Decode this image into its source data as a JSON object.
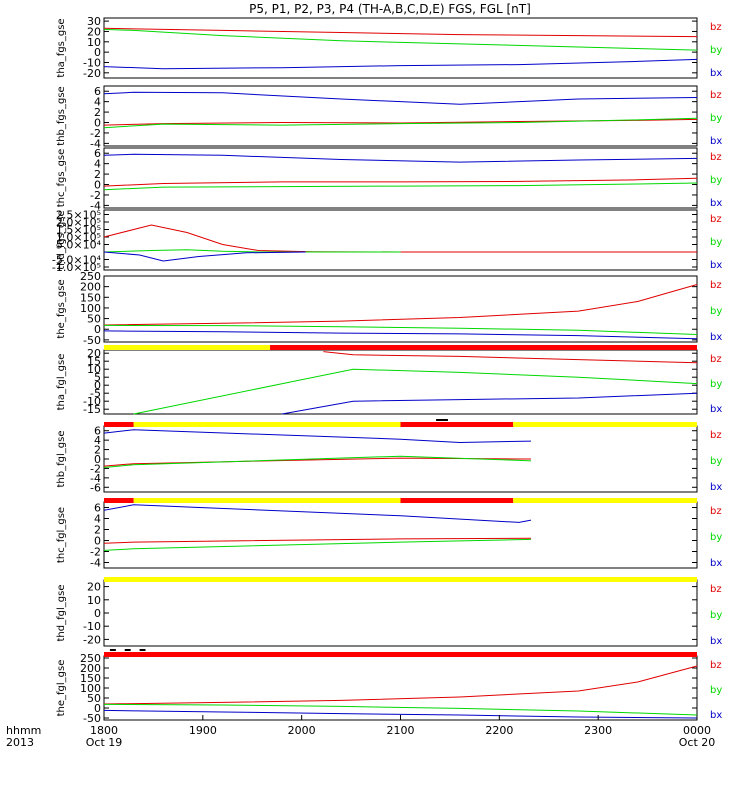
{
  "title": "P5, P1, P2, P3, P4 (TH-A,B,C,D,E) FGS, FGL [nT]",
  "x_axis": {
    "ticks": [
      "1800",
      "1900",
      "2000",
      "2100",
      "2200",
      "2300",
      "0000"
    ],
    "sublabels": {
      "start": "Oct 19",
      "end": "Oct 20"
    },
    "corner_labels": [
      "hhmm",
      "2013"
    ]
  },
  "colors": {
    "bz": "#e00000",
    "by": "#00d800",
    "bx": "#0000c8",
    "flag_red": "#ff0000",
    "flag_yellow": "#ffff00",
    "flag_black": "#000000"
  },
  "chart_data": [
    {
      "type": "line",
      "ylabel": "tha_fgs_gse",
      "ylim": [
        -25,
        33
      ],
      "yticks": [
        "-20",
        "-10",
        "0",
        "10",
        "20",
        "30"
      ],
      "series": [
        {
          "name": "bz",
          "x": [
            0,
            0.2,
            0.4,
            0.6,
            0.8,
            1
          ],
          "y": [
            23,
            21,
            19,
            17,
            16,
            15
          ]
        },
        {
          "name": "by",
          "x": [
            0,
            0.05,
            0.2,
            0.4,
            0.6,
            0.8,
            1
          ],
          "y": [
            22,
            21,
            16,
            11,
            8,
            5,
            2
          ]
        },
        {
          "name": "bx",
          "x": [
            0,
            0.1,
            0.3,
            0.5,
            0.7,
            0.9,
            1
          ],
          "y": [
            -14,
            -16,
            -15,
            -13,
            -12,
            -9,
            -7
          ]
        }
      ]
    },
    {
      "type": "line",
      "ylabel": "thb_fgs_gse",
      "ylim": [
        -4.5,
        7
      ],
      "yticks": [
        "-4",
        "-2",
        "0",
        "2",
        "4",
        "6"
      ],
      "series": [
        {
          "name": "bz",
          "x": [
            0,
            0.1,
            0.3,
            0.5,
            0.7,
            0.9,
            1
          ],
          "y": [
            -0.5,
            -0.2,
            0,
            -0.1,
            0.2,
            0.4,
            0.6
          ]
        },
        {
          "name": "by",
          "x": [
            0,
            0.1,
            0.3,
            0.5,
            0.7,
            0.9,
            1
          ],
          "y": [
            -1.0,
            -0.3,
            -0.5,
            -0.2,
            0,
            0.5,
            0.8
          ]
        },
        {
          "name": "bx",
          "x": [
            0,
            0.05,
            0.2,
            0.4,
            0.6,
            0.8,
            1
          ],
          "y": [
            5.5,
            5.8,
            5.7,
            4.5,
            3.5,
            4.5,
            4.8
          ]
        }
      ]
    },
    {
      "type": "line",
      "ylabel": "thc_fgs_gse",
      "ylim": [
        -4.5,
        7
      ],
      "yticks": [
        "-4",
        "-2",
        "0",
        "2",
        "4",
        "6"
      ],
      "series": [
        {
          "name": "bz",
          "x": [
            0,
            0.1,
            0.3,
            0.5,
            0.7,
            0.9,
            1
          ],
          "y": [
            -0.3,
            0.2,
            0.5,
            0.5,
            0.6,
            0.9,
            1.2
          ]
        },
        {
          "name": "by",
          "x": [
            0,
            0.1,
            0.3,
            0.5,
            0.7,
            0.9,
            1
          ],
          "y": [
            -1.0,
            -0.5,
            -0.4,
            -0.3,
            -0.2,
            0.1,
            0.3
          ]
        },
        {
          "name": "bx",
          "x": [
            0,
            0.05,
            0.2,
            0.4,
            0.6,
            0.8,
            1
          ],
          "y": [
            5.6,
            5.8,
            5.6,
            4.8,
            4.3,
            4.7,
            5.0
          ]
        }
      ]
    },
    {
      "type": "line",
      "ylabel": "thd_fgs_gse",
      "ylim": [
        -120000.0,
        280000.0
      ],
      "yticks": [
        "-1.0×10⁵",
        "-5.0×10⁴",
        "5.0×10⁴",
        "1.0×10⁵",
        "1.5×10⁵",
        "2.0×10⁵",
        "2.5×10⁵"
      ],
      "series": [
        {
          "name": "bz",
          "x": [
            0,
            0.08,
            0.14,
            0.2,
            0.26,
            0.35,
            0.5,
            1
          ],
          "y": [
            100000.0,
            180000.0,
            130000.0,
            50000.0,
            10000.0,
            2000.0,
            0,
            0
          ]
        },
        {
          "name": "by",
          "x": [
            0,
            0.08,
            0.14,
            0.2,
            0.26,
            0.35,
            0.5
          ],
          "y": [
            0,
            10000.0,
            15000.0,
            5000.0,
            0,
            0,
            0
          ]
        },
        {
          "name": "bx",
          "x": [
            0,
            0.06,
            0.1,
            0.16,
            0.24,
            0.34
          ],
          "y": [
            0,
            -20000.0,
            -60000.0,
            -30000.0,
            -5000.0,
            0
          ]
        }
      ]
    },
    {
      "type": "line",
      "ylabel": "the_fgs_gse",
      "ylim": [
        -60,
        250
      ],
      "yticks": [
        "-50",
        "0",
        "50",
        "100",
        "150",
        "200",
        "250"
      ],
      "series": [
        {
          "name": "bz",
          "x": [
            0,
            0.2,
            0.4,
            0.6,
            0.8,
            0.9,
            1
          ],
          "y": [
            20,
            28,
            38,
            55,
            85,
            130,
            210
          ]
        },
        {
          "name": "by",
          "x": [
            0,
            0.2,
            0.4,
            0.6,
            0.8,
            1
          ],
          "y": [
            18,
            17,
            12,
            5,
            -5,
            -25
          ]
        },
        {
          "name": "bx",
          "x": [
            0,
            0.2,
            0.4,
            0.6,
            0.8,
            1
          ],
          "y": [
            -8,
            -12,
            -18,
            -22,
            -30,
            -45
          ]
        }
      ]
    },
    {
      "type": "line",
      "ylabel": "tha_fgl_gse",
      "ylim": [
        -18,
        22
      ],
      "yticks": [
        "-15",
        "-10",
        "-5",
        "0",
        "5",
        "10",
        "15",
        "20"
      ],
      "series": [
        {
          "name": "bz",
          "x": [
            0.37,
            0.42,
            0.6,
            0.8,
            1
          ],
          "y": [
            21,
            19,
            18,
            16,
            14
          ]
        },
        {
          "name": "by",
          "x": [
            0.05,
            0.42,
            0.6,
            0.8,
            1
          ],
          "y": [
            -18,
            10,
            8,
            5,
            1
          ]
        },
        {
          "name": "bx",
          "x": [
            0.3,
            0.42,
            0.6,
            0.8,
            1
          ],
          "y": [
            -18,
            -10,
            -9,
            -8,
            -5
          ]
        }
      ]
    },
    {
      "type": "line",
      "ylabel": "thb_fgl_gse",
      "ylim": [
        -7,
        7
      ],
      "yticks": [
        "-6",
        "-4",
        "-2",
        "0",
        "2",
        "4",
        "6"
      ],
      "series": [
        {
          "name": "bz",
          "x": [
            0,
            0.05,
            0.5,
            0.7,
            0.72
          ],
          "y": [
            -1.5,
            -1.0,
            0.2,
            0,
            0
          ]
        },
        {
          "name": "by",
          "x": [
            0,
            0.05,
            0.5,
            0.7,
            0.72
          ],
          "y": [
            -1.8,
            -1.2,
            0.6,
            -0.3,
            -0.4
          ]
        },
        {
          "name": "bx",
          "x": [
            0,
            0.05,
            0.5,
            0.6,
            0.72
          ],
          "y": [
            5.5,
            6.2,
            4.2,
            3.5,
            3.8
          ]
        }
      ]
    },
    {
      "type": "line",
      "ylabel": "thc_fgl_gse",
      "ylim": [
        -5,
        7
      ],
      "yticks": [
        "-4",
        "-2",
        "0",
        "2",
        "4",
        "6"
      ],
      "series": [
        {
          "name": "bz",
          "x": [
            0,
            0.05,
            0.5,
            0.72
          ],
          "y": [
            -0.5,
            -0.3,
            0.3,
            0.4
          ]
        },
        {
          "name": "by",
          "x": [
            0,
            0.05,
            0.5,
            0.72
          ],
          "y": [
            -1.8,
            -1.5,
            -0.3,
            0.2
          ]
        },
        {
          "name": "bx",
          "x": [
            0,
            0.05,
            0.5,
            0.7,
            0.72
          ],
          "y": [
            5.5,
            6.5,
            4.5,
            3.3,
            3.7
          ]
        }
      ]
    },
    {
      "type": "line",
      "ylabel": "thd_fgl_gse",
      "ylim": [
        -25,
        25
      ],
      "yticks": [
        "-20",
        "-10",
        "0",
        "10",
        "20"
      ],
      "series": []
    },
    {
      "type": "line",
      "ylabel": "the_fgl_gse",
      "ylim": [
        -60,
        260
      ],
      "yticks": [
        "-50",
        "0",
        "50",
        "100",
        "150",
        "200",
        "250"
      ],
      "series": [
        {
          "name": "bz",
          "x": [
            0,
            0.2,
            0.4,
            0.6,
            0.8,
            0.9,
            1
          ],
          "y": [
            20,
            28,
            38,
            55,
            85,
            130,
            210
          ]
        },
        {
          "name": "by",
          "x": [
            0,
            0.2,
            0.4,
            0.6,
            0.8,
            1
          ],
          "y": [
            18,
            15,
            8,
            -2,
            -15,
            -35
          ]
        },
        {
          "name": "bx",
          "x": [
            0,
            0.2,
            0.4,
            0.6,
            0.8,
            1
          ],
          "y": [
            -12,
            -20,
            -28,
            -35,
            -45,
            -50
          ]
        }
      ]
    }
  ],
  "flag_bars": [
    {
      "after_panel": 4,
      "segments": [
        {
          "x0": 0,
          "x1": 0.28,
          "color": "yellow"
        },
        {
          "x0": 0.28,
          "x1": 1,
          "color": "red"
        }
      ]
    },
    {
      "after_panel": 5,
      "segments": [
        {
          "x0": 0,
          "x1": 0.05,
          "color": "red"
        },
        {
          "x0": 0.05,
          "x1": 0.5,
          "color": "yellow"
        },
        {
          "x0": 0.5,
          "x1": 0.69,
          "color": "red"
        },
        {
          "x0": 0.69,
          "x1": 1,
          "color": "yellow"
        }
      ],
      "marks": [
        {
          "x0": 0.56,
          "x1": 0.58
        }
      ]
    },
    {
      "after_panel": 6,
      "segments": [
        {
          "x0": 0,
          "x1": 0.05,
          "color": "red"
        },
        {
          "x0": 0.05,
          "x1": 0.5,
          "color": "yellow"
        },
        {
          "x0": 0.5,
          "x1": 0.69,
          "color": "red"
        },
        {
          "x0": 0.69,
          "x1": 1,
          "color": "yellow"
        }
      ]
    },
    {
      "after_panel": 7,
      "segments": [
        {
          "x0": 0,
          "x1": 1,
          "color": "yellow"
        }
      ]
    },
    {
      "after_panel": 8,
      "segments": [
        {
          "x0": 0,
          "x1": 1,
          "color": "red"
        }
      ],
      "marks": [
        {
          "x0": 0.01,
          "x1": 0.02
        },
        {
          "x0": 0.035,
          "x1": 0.045
        },
        {
          "x0": 0.06,
          "x1": 0.07
        }
      ]
    }
  ]
}
